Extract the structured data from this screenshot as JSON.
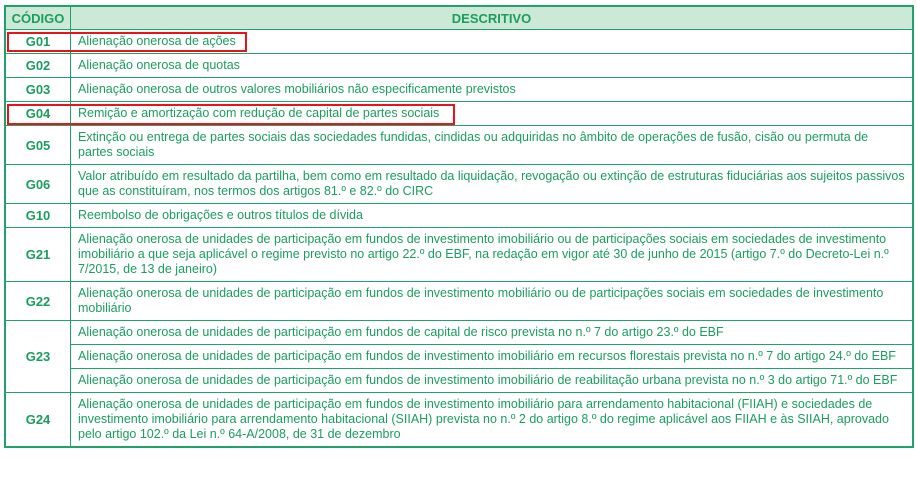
{
  "header": {
    "code": "CÓDIGO",
    "description": "DESCRITIVO"
  },
  "colors": {
    "text": "#1a9e5e",
    "border": "#1fa36b",
    "header_bg": "#cce9d7",
    "highlight": "#e8141c"
  },
  "rows": [
    {
      "code": "G01",
      "descriptions": [
        "Alienação onerosa de ações"
      ],
      "highlighted": true
    },
    {
      "code": "G02",
      "descriptions": [
        "Alienação onerosa de quotas"
      ]
    },
    {
      "code": "G03",
      "descriptions": [
        "Alienação onerosa de outros valores mobiliários não especificamente previstos"
      ]
    },
    {
      "code": "G04",
      "descriptions": [
        "Remição e amortização com redução de capital de partes sociais"
      ],
      "highlighted": true
    },
    {
      "code": "G05",
      "descriptions": [
        "Extinção ou entrega de partes sociais das sociedades fundidas, cindidas ou adquiridas no âmbito de operações de fusão, cisão ou permuta de partes sociais"
      ]
    },
    {
      "code": "G06",
      "descriptions": [
        "Valor atribuído em resultado da partilha, bem como em resultado da liquidação, revogação ou extinção de estruturas fiduciárias aos sujeitos passivos que as constituíram, nos termos dos artigos 81.º e 82.º do CIRC"
      ]
    },
    {
      "code": "G10",
      "descriptions": [
        "Reembolso de obrigações e outros títulos de dívida"
      ]
    },
    {
      "code": "G21",
      "descriptions": [
        "Alienação onerosa de unidades de participação em fundos de investimento  imobiliário ou de participações sociais em sociedades de investimento imobiliário a que seja aplicável o regime previsto no artigo 22.º do EBF, na redação em vigor até 30 de junho de 2015 (artigo 7.º do Decreto-Lei n.º 7/2015, de 13 de janeiro)"
      ]
    },
    {
      "code": "G22",
      "descriptions": [
        "Alienação onerosa de unidades de participação em fundos de investimento mobiliário ou de participações sociais em sociedades de investimento mobiliário"
      ]
    },
    {
      "code": "G23",
      "descriptions": [
        "Alienação onerosa de unidades de participação em fundos de capital de risco prevista no n.º 7 do artigo 23.º do EBF",
        "Alienação onerosa de unidades de participação em fundos de investimento imobiliário em recursos florestais prevista no n.º 7 do artigo 24.º do EBF",
        "Alienação onerosa de unidades de participação em fundos de investimento imobiliário de reabilitação urbana prevista no n.º 3 do artigo 71.º do EBF"
      ]
    },
    {
      "code": "G24",
      "descriptions": [
        "Alienação onerosa de unidades de participação em fundos de investimento imobiliário para arrendamento habitacional (FIIAH) e sociedades de investimento imobiliário para arrendamento habitacional (SIIAH) prevista no n.º 2 do artigo 8.º do regime aplicável aos FIIAH e às SIIAH, aprovado pelo artigo 102.º da Lei n.º 64-A/2008, de 31 de dezembro"
      ]
    }
  ]
}
